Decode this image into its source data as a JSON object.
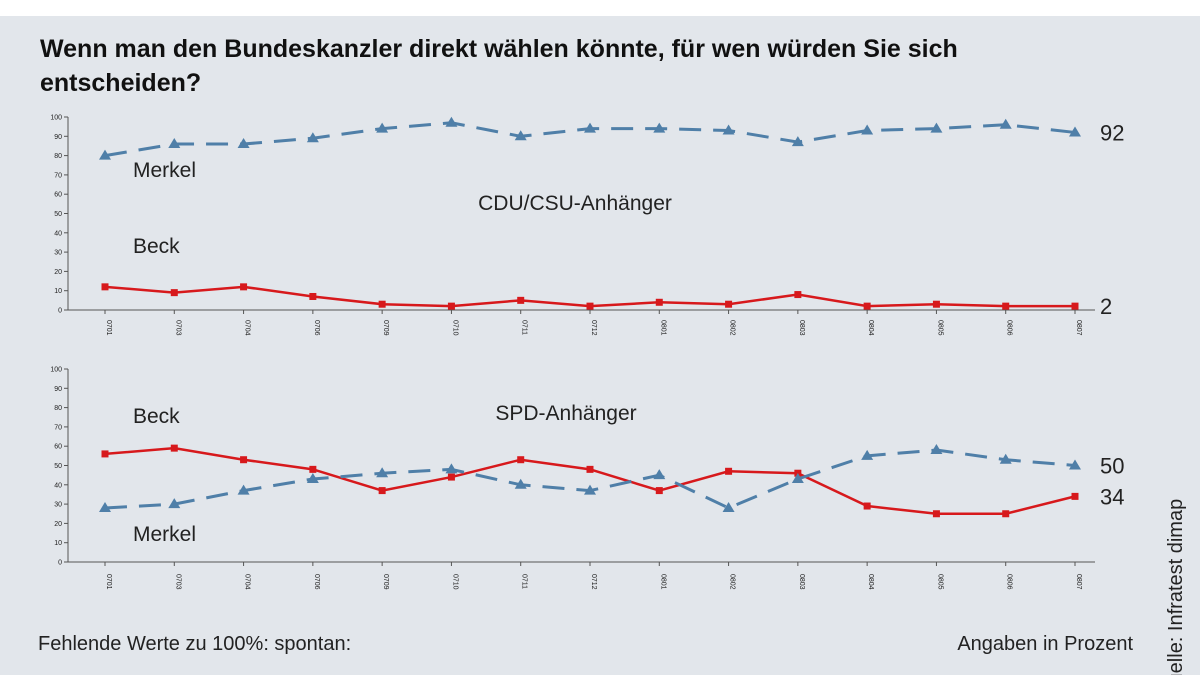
{
  "title": "Wenn man den Bundeskanzler direkt wählen könnte, für wen würden Sie sich entscheiden?",
  "chart_data": [
    {
      "type": "line",
      "title": "CDU/CSU-Anhänger",
      "categories": [
        "0701",
        "0703",
        "0704",
        "0706",
        "0709",
        "0710",
        "0711",
        "0712",
        "0801",
        "0802",
        "0803",
        "0804",
        "0805",
        "0806",
        "0807"
      ],
      "series": [
        {
          "name": "Merkel",
          "color": "#4f7fa8",
          "style": "dashed",
          "marker": "triangle",
          "values": [
            80,
            86,
            86,
            89,
            94,
            97,
            90,
            94,
            94,
            93,
            87,
            93,
            94,
            96,
            92
          ]
        },
        {
          "name": "Beck",
          "color": "#d7191c",
          "style": "solid",
          "marker": "square",
          "values": [
            12,
            9,
            12,
            7,
            3,
            2,
            5,
            2,
            4,
            3,
            8,
            2,
            3,
            2,
            2
          ]
        }
      ],
      "ylim": [
        0,
        100
      ],
      "yticks": [
        0,
        10,
        20,
        30,
        40,
        50,
        60,
        70,
        80,
        90,
        100
      ]
    },
    {
      "type": "line",
      "title": "SPD-Anhänger",
      "categories": [
        "0701",
        "0703",
        "0704",
        "0706",
        "0709",
        "0710",
        "0711",
        "0712",
        "0801",
        "0802",
        "0803",
        "0804",
        "0805",
        "0806",
        "0807"
      ],
      "series": [
        {
          "name": "Beck",
          "color": "#d7191c",
          "style": "solid",
          "marker": "square",
          "values": [
            56,
            59,
            53,
            48,
            37,
            44,
            53,
            48,
            37,
            47,
            46,
            29,
            25,
            25,
            34
          ]
        },
        {
          "name": "Merkel",
          "color": "#4f7fa8",
          "style": "dashed",
          "marker": "triangle",
          "values": [
            28,
            30,
            37,
            43,
            46,
            48,
            40,
            37,
            45,
            28,
            43,
            55,
            58,
            53,
            50
          ]
        }
      ],
      "ylim": [
        0,
        100
      ],
      "yticks": [
        0,
        10,
        20,
        30,
        40,
        50,
        60,
        70,
        80,
        90,
        100
      ]
    }
  ],
  "footer_left": "Fehlende Werte zu 100%: spontan:",
  "footer_right": "Angaben in Prozent",
  "source": "Quelle: Infratest dimap"
}
